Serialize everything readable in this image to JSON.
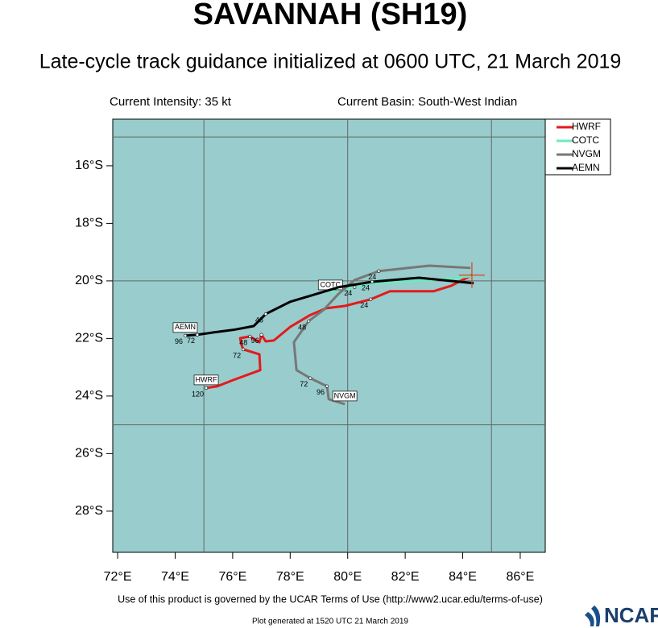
{
  "chart_data": {
    "type": "track",
    "title": "SAVANNAH (SH19)",
    "subtitle": "Late-cycle track guidance initialized at 0600 UTC, 21 March 2019",
    "left_note": "Current Intensity: 35 kt",
    "right_note": "Current Basin: South-West Indian",
    "footer": "Use of this product is governed by the UCAR Terms of Use (http://www2.ucar.edu/terms-of-use)",
    "generated": "Plot generated at 1520 UTC  21 March 2019",
    "logo": "NCAR",
    "background": "#99cccc",
    "grid": true,
    "legend": "outside-top-right",
    "xlim": [
      71.83,
      86.87
    ],
    "ylim": [
      -29.43,
      -14.38
    ],
    "xticks": [
      {
        "value": 72,
        "label": "72°E"
      },
      {
        "value": 74,
        "label": "74°E"
      },
      {
        "value": 76,
        "label": "76°E"
      },
      {
        "value": 78,
        "label": "78°E"
      },
      {
        "value": 80,
        "label": "80°E"
      },
      {
        "value": 82,
        "label": "82°E"
      },
      {
        "value": 84,
        "label": "84°E"
      },
      {
        "value": 86,
        "label": "86°E"
      }
    ],
    "yticks": [
      {
        "value": -16,
        "label": "16°S"
      },
      {
        "value": -18,
        "label": "18°S"
      },
      {
        "value": -20,
        "label": "20°S"
      },
      {
        "value": -22,
        "label": "22°S"
      },
      {
        "value": -24,
        "label": "24°S"
      },
      {
        "value": -26,
        "label": "26°S"
      },
      {
        "value": -28,
        "label": "28°S"
      }
    ],
    "grid_x": [
      75,
      80,
      85
    ],
    "grid_y": [
      -15,
      -20,
      -25
    ],
    "current_position": {
      "x": 84.32,
      "y": -19.8
    },
    "series": [
      {
        "name": "HWRF",
        "color": "#e41a1c",
        "x": [
          84.32,
          83.6,
          82.98,
          82.08,
          81.47,
          80.8,
          79.9,
          79.25,
          78.67,
          78.0,
          77.43,
          77.15,
          77.0,
          76.93,
          76.6,
          76.26,
          76.3,
          76.37,
          76.93,
          76.96,
          76.03,
          75.47,
          75.08
        ],
        "y": [
          -19.8,
          -20.17,
          -20.36,
          -20.36,
          -20.36,
          -20.64,
          -20.87,
          -20.95,
          -21.2,
          -21.6,
          -22.07,
          -22.1,
          -21.87,
          -22.13,
          -21.93,
          -21.99,
          -22.2,
          -22.38,
          -22.55,
          -23.1,
          -23.44,
          -23.66,
          -23.72
        ],
        "hours": [
          {
            "hour": 24,
            "x": 80.8,
            "y": -20.64
          },
          {
            "hour": 48,
            "x": 76.6,
            "y": -21.93
          },
          {
            "hour": 72,
            "x": 76.37,
            "y": -22.38
          },
          {
            "hour": 96,
            "x": 77.0,
            "y": -21.87
          },
          {
            "hour": 120,
            "x": 75.08,
            "y": -23.72
          }
        ]
      },
      {
        "name": "COTC",
        "color": "#70e8c0",
        "x": [
          84.3,
          83.04,
          80.8,
          80.24,
          79.4
        ],
        "y": [
          -19.83,
          -19.97,
          -20.08,
          -20.22,
          -20.42
        ],
        "hours": [
          {
            "hour": 24,
            "x": 80.24,
            "y": -20.22
          }
        ]
      },
      {
        "name": "NVGM",
        "color": "#777777",
        "x": [
          84.27,
          82.84,
          81.08,
          80.24,
          79.68,
          79.17,
          78.64,
          78.13,
          78.22,
          78.7,
          79.28,
          79.34,
          79.9
        ],
        "y": [
          -19.55,
          -19.47,
          -19.66,
          -19.97,
          -20.45,
          -21.0,
          -21.4,
          -22.13,
          -23.1,
          -23.38,
          -23.66,
          -24.11,
          -24.28
        ],
        "hours": [
          {
            "hour": 24,
            "x": 81.08,
            "y": -19.66
          },
          {
            "hour": 48,
            "x": 78.64,
            "y": -21.4
          },
          {
            "hour": 72,
            "x": 78.7,
            "y": -23.38
          },
          {
            "hour": 96,
            "x": 79.28,
            "y": -23.66
          }
        ]
      },
      {
        "name": "AEMN",
        "color": "#000000",
        "x": [
          84.38,
          82.48,
          80.85,
          79.68,
          77.99,
          77.15,
          76.73,
          76.03,
          75.33,
          74.77,
          74.35
        ],
        "y": [
          -20.08,
          -19.89,
          -20.03,
          -20.22,
          -20.73,
          -21.15,
          -21.57,
          -21.7,
          -21.79,
          -21.87,
          -21.9
        ],
        "hours": [
          {
            "hour": 24,
            "x": 80.85,
            "y": -20.03
          },
          {
            "hour": 48,
            "x": 77.15,
            "y": -21.15
          },
          {
            "hour": 72,
            "x": 74.77,
            "y": -21.87
          },
          {
            "hour": 96,
            "x": 74.35,
            "y": -21.9
          }
        ]
      }
    ]
  }
}
